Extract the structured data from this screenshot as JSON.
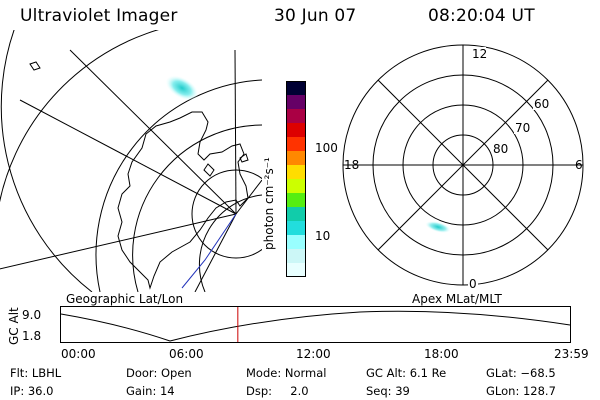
{
  "header": {
    "instrument": "Ultraviolet Imager",
    "date": "30 Jun 07",
    "time": "08:20:04 UT"
  },
  "left_panel": {
    "caption": "Geographic Lat/Lon"
  },
  "right_panel": {
    "caption": "Apex MLat/MLT",
    "mlt_labels": {
      "top": "12",
      "bottom": "0",
      "left": "18",
      "right": "6"
    },
    "mlat_labels": [
      "60",
      "70",
      "80"
    ]
  },
  "colorbar": {
    "unit_label": "photon cm⁻²s⁻¹",
    "tick_labels": [
      "100",
      "10"
    ],
    "colors": [
      "#000033",
      "#660066",
      "#aa0044",
      "#dd0000",
      "#ff3300",
      "#ff8800",
      "#ffdd00",
      "#ccff00",
      "#55ee11",
      "#11ccaa",
      "#22dddd",
      "#99ffff",
      "#ccf7f7",
      "#e8ffff"
    ]
  },
  "timeline": {
    "ylabel": "GC Alt",
    "y_ticks": [
      "9.0",
      "1.8"
    ],
    "x_ticks": [
      "00:00",
      "06:00",
      "12:00",
      "18:00",
      "23:59"
    ],
    "current_time_fraction": 0.3474,
    "marker_color": "#cc0000"
  },
  "status": {
    "flt": "Flt: LBHL",
    "ip": "IP: 36.0",
    "door": "Door: Open",
    "gain": "Gain: 14",
    "mode": "Mode: Normal",
    "dsp": "Dsp:     2.0",
    "gc_alt": "GC Alt: 6.1 Re",
    "seq": "Seq: 39",
    "glat": "GLat: −68.5",
    "glon": "GLon: 128.7"
  }
}
